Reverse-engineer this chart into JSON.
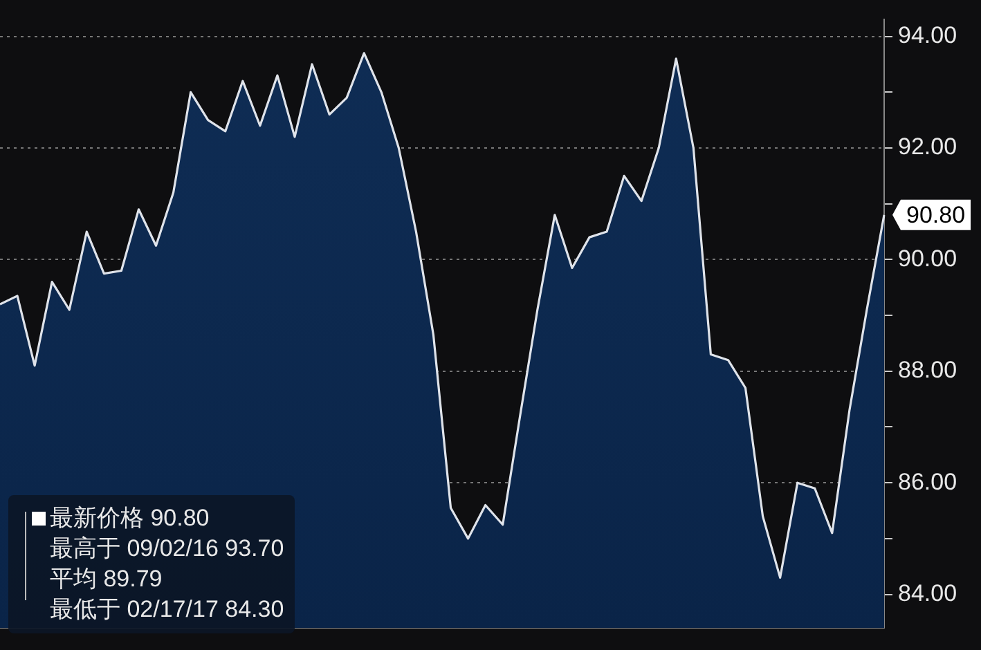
{
  "chart_data": {
    "type": "area",
    "categories": [
      null,
      null,
      null,
      null,
      null,
      null,
      null,
      null,
      null,
      null,
      null,
      null,
      null,
      null,
      null,
      null,
      null,
      null,
      null,
      null,
      null,
      null,
      null,
      null,
      null,
      null,
      null,
      null,
      null,
      null,
      null,
      null,
      null,
      null,
      null,
      null,
      null,
      null,
      null,
      null,
      null,
      null,
      null,
      null,
      null,
      null,
      null,
      null,
      null,
      null,
      null,
      null
    ],
    "series": [
      {
        "color": "#0f2d55",
        "values": [
          89.2,
          89.35,
          88.1,
          89.6,
          89.1,
          90.5,
          89.75,
          89.8,
          90.9,
          90.25,
          91.2,
          93.0,
          92.5,
          92.3,
          93.2,
          92.4,
          93.3,
          92.2,
          93.5,
          92.6,
          92.9,
          93.7,
          93.0,
          92.0,
          90.5,
          88.65,
          85.55,
          85.0,
          85.6,
          85.25,
          87.2,
          89.1,
          90.8,
          89.85,
          90.4,
          90.5,
          91.5,
          91.05,
          92.0,
          93.6,
          92.0,
          88.3,
          88.2,
          87.7,
          85.4,
          84.3,
          86.0,
          85.9,
          85.1,
          87.3,
          89.1,
          90.8
        ]
      }
    ],
    "ylim": [
      83.4,
      94.3
    ],
    "yticks": [
      {
        "value": 84,
        "label": "84.00"
      },
      {
        "value": 85,
        "label": null
      },
      {
        "value": 86,
        "label": "86.00"
      },
      {
        "value": 87,
        "label": null
      },
      {
        "value": 88,
        "label": "88.00"
      },
      {
        "value": 89,
        "label": null
      },
      {
        "value": 90,
        "label": "90.00"
      },
      {
        "value": 91,
        "label": null
      },
      {
        "value": 92,
        "label": "92.00"
      },
      {
        "value": 93,
        "label": null
      },
      {
        "value": 94,
        "label": "94.00"
      }
    ],
    "grid": "y",
    "annotations": [
      "90.80",
      "最新价格 90.80",
      "最高于 09/02/16 93.70",
      "平均 89.79",
      "最低于 02/17/17 84.30"
    ]
  }
}
